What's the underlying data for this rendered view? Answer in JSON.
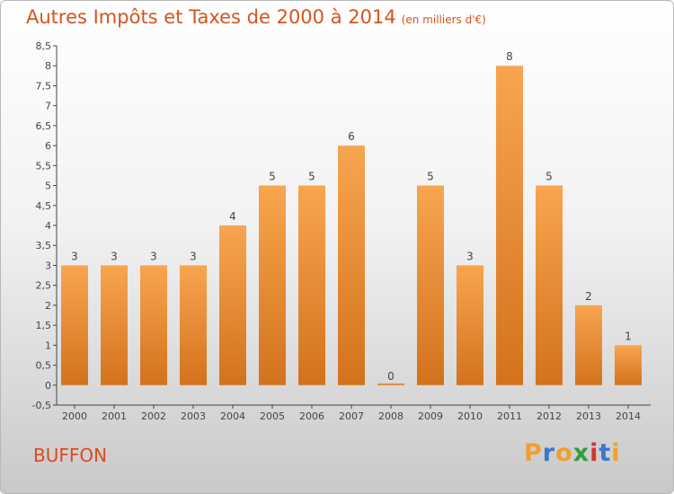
{
  "header": {
    "title": "Autres Impôts et Taxes de 2000 à 2014",
    "unit": "(en milliers d'€)"
  },
  "footer": {
    "commune": "BUFFON",
    "brand_letters": [
      {
        "ch": "P",
        "color": "#f0a030"
      },
      {
        "ch": "r",
        "color": "#3a78c8"
      },
      {
        "ch": "o",
        "color": "#f0a030"
      },
      {
        "ch": "x",
        "color": "#2e9e3e"
      },
      {
        "ch": "i",
        "color": "#d0352e"
      },
      {
        "ch": "t",
        "color": "#3a78c8"
      },
      {
        "ch": "i",
        "color": "#f0a030"
      }
    ]
  },
  "chart_data": {
    "type": "bar",
    "title": "Autres Impôts et Taxes de 2000 à 2014",
    "subtitle": "(en milliers d'€)",
    "categories": [
      "2000",
      "2001",
      "2002",
      "2003",
      "2004",
      "2005",
      "2006",
      "2007",
      "2008",
      "2009",
      "2010",
      "2011",
      "2012",
      "2013",
      "2014"
    ],
    "values": [
      3,
      3,
      3,
      3,
      4,
      5,
      5,
      6,
      0,
      5,
      3,
      8,
      5,
      2,
      1
    ],
    "ylim": [
      -0.5,
      8.5
    ],
    "yticks": [
      "-0,5",
      "0",
      "0,5",
      "1",
      "1,5",
      "2",
      "2,5",
      "3",
      "3,5",
      "4",
      "4,5",
      "5",
      "5,5",
      "6",
      "6,5",
      "7",
      "7,5",
      "8",
      "8,5"
    ],
    "grid": false,
    "colors": {
      "bar_top": "#f8a550",
      "bar_bottom": "#d4721c",
      "axis": "#444444",
      "label": "#444444"
    }
  }
}
